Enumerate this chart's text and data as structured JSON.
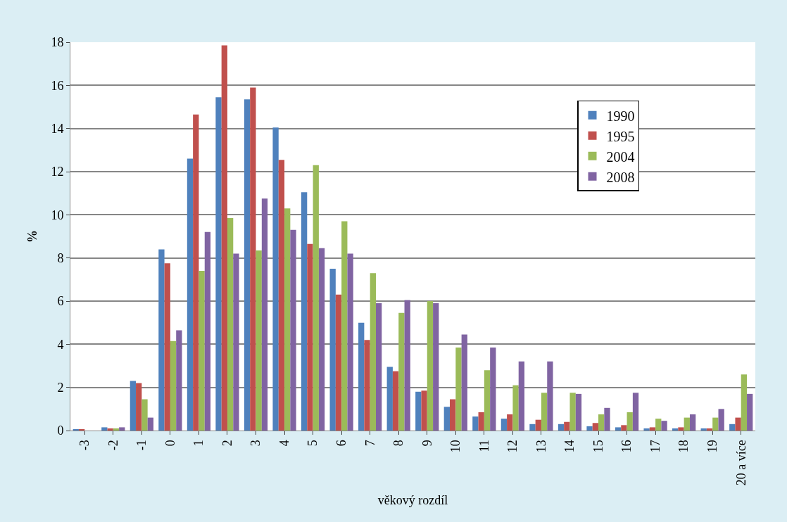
{
  "chart_data": {
    "type": "bar",
    "xlabel": "věkový rozdíl",
    "ylabel": "%",
    "categories": [
      "-3",
      "-2",
      "-1",
      "0",
      "1",
      "2",
      "3",
      "4",
      "5",
      "6",
      "7",
      "8",
      "9",
      "10",
      "11",
      "12",
      "13",
      "14",
      "15",
      "16",
      "17",
      "18",
      "19",
      "20 a více"
    ],
    "series": [
      {
        "name": "1990",
        "color": "#4f81bd",
        "values": [
          0.05,
          0.15,
          2.3,
          8.4,
          12.6,
          15.45,
          15.35,
          14.05,
          11.05,
          7.5,
          5.0,
          2.95,
          1.8,
          1.1,
          0.65,
          0.55,
          0.3,
          0.3,
          0.2,
          0.15,
          0.1,
          0.1,
          0.1,
          0.3
        ]
      },
      {
        "name": "1995",
        "color": "#c0504d",
        "values": [
          0.05,
          0.1,
          2.2,
          7.75,
          14.65,
          17.85,
          15.9,
          12.55,
          8.65,
          6.3,
          4.2,
          2.75,
          1.85,
          1.45,
          0.85,
          0.75,
          0.5,
          0.4,
          0.35,
          0.25,
          0.15,
          0.15,
          0.1,
          0.6
        ]
      },
      {
        "name": "2004",
        "color": "#9bbb59",
        "values": [
          0,
          0.1,
          1.45,
          4.15,
          7.4,
          9.85,
          8.35,
          10.3,
          12.3,
          9.7,
          7.3,
          5.45,
          6.0,
          3.85,
          2.8,
          2.1,
          1.75,
          1.75,
          0.75,
          0.85,
          0.55,
          0.6,
          0.6,
          2.6
        ]
      },
      {
        "name": "2008",
        "color": "#8064a2",
        "values": [
          0,
          0.15,
          0.6,
          4.65,
          9.2,
          8.2,
          10.75,
          9.3,
          8.45,
          8.2,
          5.9,
          6.05,
          5.9,
          4.45,
          3.85,
          3.2,
          3.2,
          1.7,
          1.05,
          1.75,
          0.45,
          0.75,
          1.0,
          1.7
        ]
      }
    ],
    "ylim": [
      0,
      18
    ],
    "yticks": [
      0,
      2,
      4,
      6,
      8,
      10,
      12,
      14,
      16,
      18
    ],
    "grid": "y",
    "legend": "top right"
  }
}
